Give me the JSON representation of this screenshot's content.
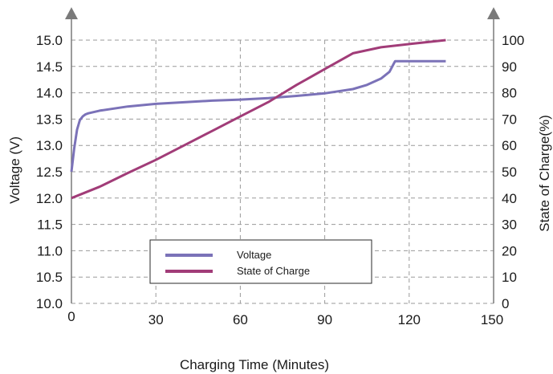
{
  "chart_data": {
    "type": "line",
    "xlabel": "Charging Time (Minutes)",
    "ylabel_left": "Voltage (V)",
    "ylabel_right": "State of Charge(%)",
    "xlim": [
      0,
      150
    ],
    "ylim_left": [
      10.0,
      15.0
    ],
    "ylim_right": [
      0,
      100
    ],
    "x_ticks": [
      "0",
      "30",
      "60",
      "90",
      "120",
      "150"
    ],
    "y_left_ticks": [
      "10.0",
      "10.5",
      "11.0",
      "11.5",
      "12.0",
      "12.5",
      "13.0",
      "13.5",
      "14.0",
      "14.5",
      "15.0"
    ],
    "y_right_ticks": [
      "0",
      "10",
      "20",
      "30",
      "40",
      "50",
      "60",
      "70",
      "80",
      "90",
      "100"
    ],
    "grid": true,
    "legend_position": "bottom-center",
    "colors": {
      "voltage": "#7b72b8",
      "soc": "#a13c78",
      "axis": "#7a7a7a",
      "grid": "#9a9a9a"
    },
    "series": [
      {
        "name": "Voltage",
        "axis": "left",
        "x": [
          0,
          1,
          2,
          3,
          4,
          5,
          6,
          10,
          20,
          30,
          40,
          50,
          60,
          70,
          80,
          90,
          100,
          105,
          110,
          113,
          114.5,
          115,
          120,
          125,
          133
        ],
        "y": [
          12.5,
          12.95,
          13.3,
          13.48,
          13.55,
          13.59,
          13.61,
          13.66,
          13.74,
          13.79,
          13.82,
          13.85,
          13.87,
          13.9,
          13.94,
          13.99,
          14.07,
          14.15,
          14.27,
          14.4,
          14.55,
          14.6,
          14.6,
          14.6,
          14.6
        ]
      },
      {
        "name": "State of Charge",
        "axis": "right",
        "x": [
          0,
          10,
          20,
          30,
          40,
          50,
          60,
          70,
          80,
          90,
          100,
          110,
          120,
          133
        ],
        "y": [
          40,
          44.3,
          49.5,
          54.5,
          60,
          65.5,
          71,
          76.5,
          83,
          89,
          95,
          97.3,
          98.5,
          100
        ]
      }
    ]
  }
}
